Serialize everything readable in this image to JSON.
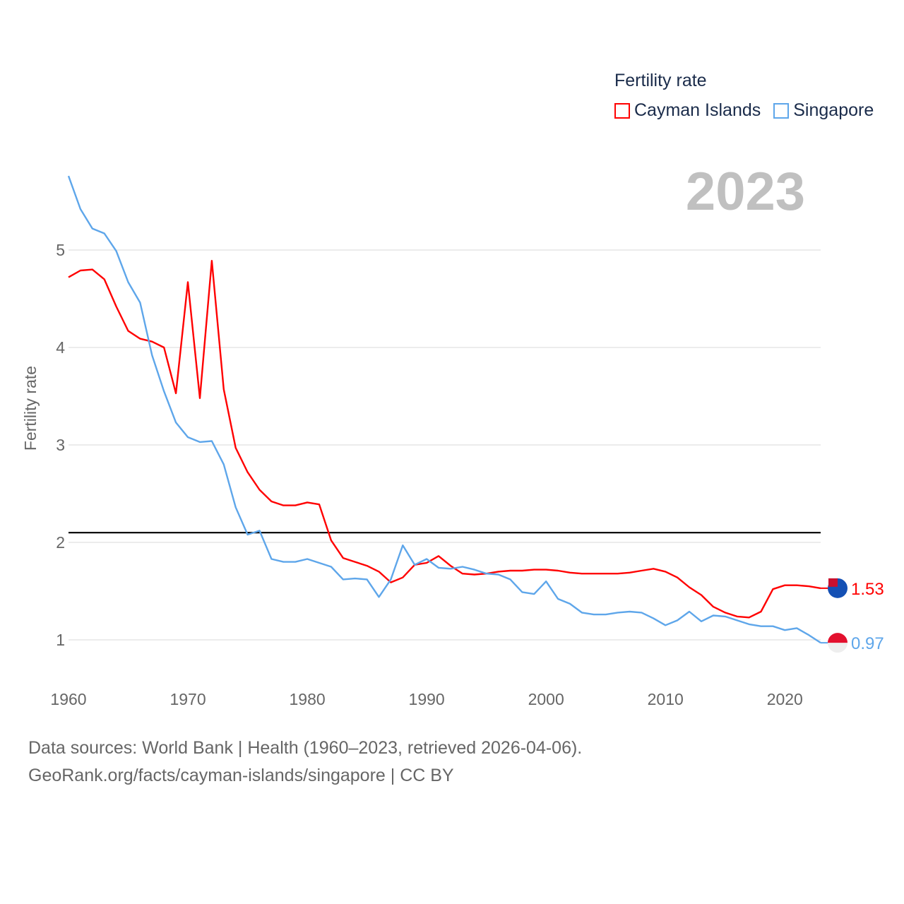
{
  "legend": {
    "title": "Fertility rate",
    "items": [
      {
        "label": "Cayman Islands",
        "color": "#ff0000"
      },
      {
        "label": "Singapore",
        "color": "#5ea6ea"
      }
    ]
  },
  "year_label": "2023",
  "source": {
    "line1": "Data sources: World Bank | Health (1960–2023, retrieved 2026-04-06).",
    "line2": "GeoRank.org/facts/cayman-islands/singapore | CC BY"
  },
  "chart_data": {
    "type": "line",
    "title": "Fertility rate",
    "xlabel": "",
    "ylabel": "Fertility rate",
    "xlim": [
      1960,
      2023
    ],
    "ylim": [
      0.6,
      5.8
    ],
    "xticks": [
      1960,
      1970,
      1980,
      1990,
      2000,
      2010,
      2020
    ],
    "yticks": [
      1,
      2,
      3,
      4,
      5
    ],
    "grid": true,
    "legend_position": "top-right",
    "reference_line": {
      "y": 2.1,
      "color": "#000000"
    },
    "x": [
      1960,
      1961,
      1962,
      1963,
      1964,
      1965,
      1966,
      1967,
      1968,
      1969,
      1970,
      1971,
      1972,
      1973,
      1974,
      1975,
      1976,
      1977,
      1978,
      1979,
      1980,
      1981,
      1982,
      1983,
      1984,
      1985,
      1986,
      1987,
      1988,
      1989,
      1990,
      1991,
      1992,
      1993,
      1994,
      1995,
      1996,
      1997,
      1998,
      1999,
      2000,
      2001,
      2002,
      2003,
      2004,
      2005,
      2006,
      2007,
      2008,
      2009,
      2010,
      2011,
      2012,
      2013,
      2014,
      2015,
      2016,
      2017,
      2018,
      2019,
      2020,
      2021,
      2022,
      2023
    ],
    "series": [
      {
        "name": "Cayman Islands",
        "color": "#ff0000",
        "end_label": "1.53",
        "values": [
          4.72,
          4.79,
          4.8,
          4.7,
          4.42,
          4.17,
          4.09,
          4.06,
          4.0,
          3.53,
          4.67,
          3.48,
          4.89,
          3.57,
          2.97,
          2.72,
          2.54,
          2.42,
          2.38,
          2.38,
          2.41,
          2.39,
          2.02,
          1.84,
          1.8,
          1.76,
          1.7,
          1.59,
          1.64,
          1.77,
          1.79,
          1.86,
          1.76,
          1.68,
          1.67,
          1.68,
          1.7,
          1.71,
          1.71,
          1.72,
          1.72,
          1.71,
          1.69,
          1.68,
          1.68,
          1.68,
          1.68,
          1.69,
          1.71,
          1.73,
          1.7,
          1.64,
          1.54,
          1.46,
          1.34,
          1.28,
          1.24,
          1.23,
          1.29,
          1.52,
          1.56,
          1.56,
          1.55,
          1.53
        ]
      },
      {
        "name": "Singapore",
        "color": "#5ea6ea",
        "end_label": "0.97",
        "values": [
          5.76,
          5.42,
          5.22,
          5.17,
          4.99,
          4.67,
          4.46,
          3.92,
          3.55,
          3.23,
          3.08,
          3.03,
          3.04,
          2.8,
          2.36,
          2.08,
          2.12,
          1.83,
          1.8,
          1.8,
          1.83,
          1.79,
          1.75,
          1.62,
          1.63,
          1.62,
          1.44,
          1.62,
          1.97,
          1.77,
          1.83,
          1.74,
          1.73,
          1.75,
          1.72,
          1.68,
          1.67,
          1.62,
          1.49,
          1.47,
          1.6,
          1.42,
          1.37,
          1.28,
          1.26,
          1.26,
          1.28,
          1.29,
          1.28,
          1.22,
          1.15,
          1.2,
          1.29,
          1.19,
          1.25,
          1.24,
          1.2,
          1.16,
          1.14,
          1.14,
          1.1,
          1.12,
          1.05,
          0.97
        ]
      }
    ]
  }
}
